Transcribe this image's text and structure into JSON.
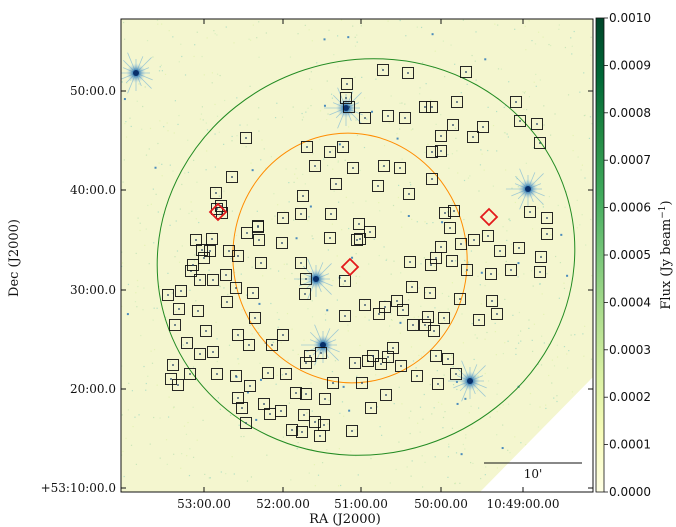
{
  "chart_data": {
    "type": "scatter",
    "xlabel": "RA (J2000)",
    "ylabel": "Dec (J2000)",
    "x_tick_labels": [
      "53:00.00",
      "52:00.00",
      "51:00.00",
      "50:00.00",
      "10:49:00.00"
    ],
    "y_tick_labels": [
      "+53:10:00.0",
      "20:00.0",
      "30:00.0",
      "40:00.0",
      "50:00.0"
    ],
    "colorbar": {
      "label": "Flux (Jy beam",
      "label_sup": "−1",
      "label_end": ")",
      "min": 0.0,
      "max": 0.001,
      "ticks": [
        "0.0000",
        "0.0001",
        "0.0002",
        "0.0003",
        "0.0004",
        "0.0005",
        "0.0006",
        "0.0007",
        "0.0008",
        "0.0009",
        "0.0010"
      ],
      "colormap": [
        "#ffffe5",
        "#f7fcb9",
        "#d9f0a3",
        "#addd8e",
        "#78c679",
        "#41ab5d",
        "#238b45",
        "#006837",
        "#004529"
      ]
    },
    "background_color": "#f4f6cf",
    "scale_bar": {
      "label": "10'"
    },
    "ellipses": [
      {
        "name": "outer",
        "color": "#228b22"
      },
      {
        "name": "inner",
        "color": "#ff8c00"
      }
    ],
    "bright_sources": 6,
    "squares_color": "#111111",
    "diamonds_color": "#e31a1c",
    "diamond_count": 3
  }
}
